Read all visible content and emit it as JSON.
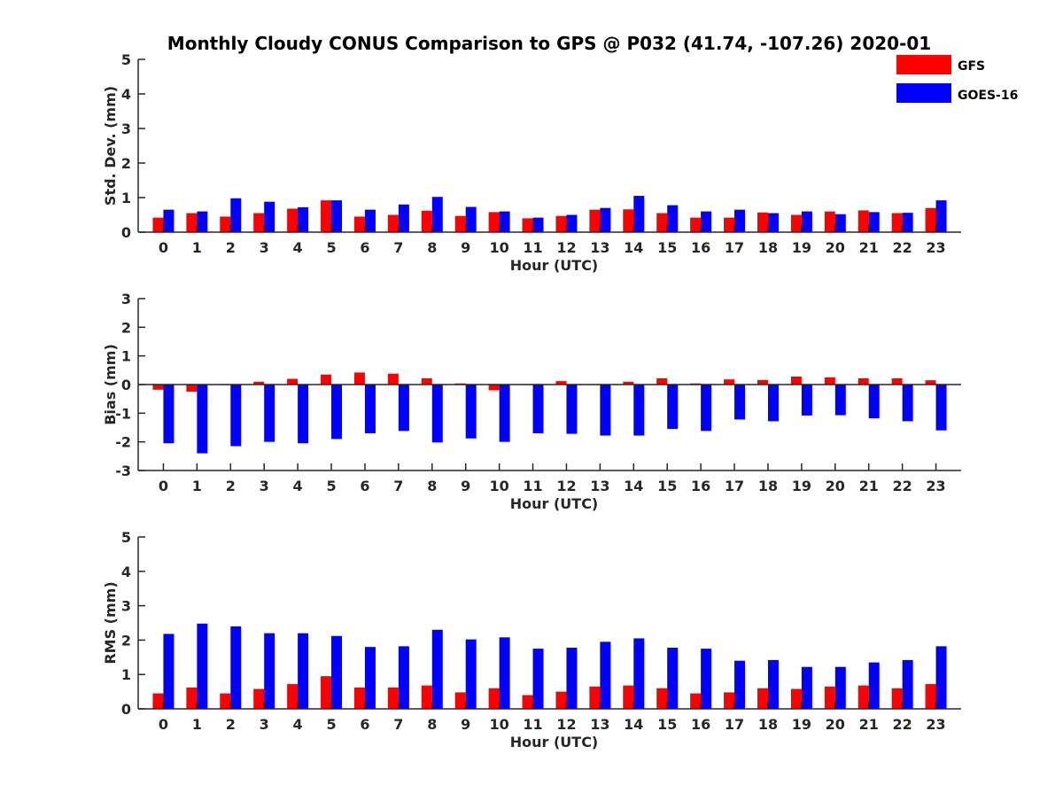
{
  "chart_data": {
    "type": "bar",
    "title": "Monthly Cloudy CONUS Comparison to GPS @ P032 (41.74, -107.26) 2020-01",
    "legend": {
      "placement": "top-right",
      "entries": [
        {
          "name": "GFS",
          "color": "#ff0000"
        },
        {
          "name": "GOES-16",
          "color": "#0000ff"
        }
      ]
    },
    "categories": [
      "0",
      "1",
      "2",
      "3",
      "4",
      "5",
      "6",
      "7",
      "8",
      "9",
      "10",
      "11",
      "12",
      "13",
      "14",
      "15",
      "16",
      "17",
      "18",
      "19",
      "20",
      "21",
      "22",
      "23"
    ],
    "panels": [
      {
        "id": "std",
        "xlabel": "Hour (UTC)",
        "ylabel": "Std. Dev. (mm)",
        "ylim": [
          0,
          5
        ],
        "yticks": [
          "0",
          "1",
          "2",
          "3",
          "4",
          "5"
        ],
        "series": [
          {
            "name": "GFS",
            "color": "#ff0000",
            "values": [
              0.42,
              0.55,
              0.45,
              0.55,
              0.68,
              0.92,
              0.45,
              0.5,
              0.62,
              0.47,
              0.58,
              0.4,
              0.47,
              0.65,
              0.66,
              0.55,
              0.42,
              0.42,
              0.57,
              0.5,
              0.6,
              0.63,
              0.55,
              0.7
            ]
          },
          {
            "name": "GOES-16",
            "color": "#0000ff",
            "values": [
              0.65,
              0.6,
              0.98,
              0.88,
              0.72,
              0.92,
              0.65,
              0.8,
              1.02,
              0.73,
              0.6,
              0.42,
              0.5,
              0.7,
              1.05,
              0.78,
              0.6,
              0.65,
              0.55,
              0.6,
              0.52,
              0.58,
              0.56,
              0.92
            ]
          }
        ]
      },
      {
        "id": "bias",
        "xlabel": "Hour (UTC)",
        "ylabel": "Bias (mm)",
        "ylim": [
          -3,
          3
        ],
        "yticks": [
          "-3",
          "-2",
          "-1",
          "0",
          "1",
          "2",
          "3"
        ],
        "series": [
          {
            "name": "GFS",
            "color": "#ff0000",
            "values": [
              -0.18,
              -0.25,
              -0.02,
              0.1,
              0.2,
              0.35,
              0.42,
              0.38,
              0.22,
              0.04,
              -0.2,
              -0.02,
              0.12,
              -0.02,
              0.1,
              0.22,
              0.04,
              0.18,
              0.16,
              0.28,
              0.25,
              0.22,
              0.22,
              0.15
            ]
          },
          {
            "name": "GOES-16",
            "color": "#0000ff",
            "values": [
              -2.05,
              -2.4,
              -2.15,
              -2.0,
              -2.05,
              -1.9,
              -1.7,
              -1.62,
              -2.02,
              -1.88,
              -2.0,
              -1.7,
              -1.72,
              -1.78,
              -1.78,
              -1.55,
              -1.62,
              -1.22,
              -1.28,
              -1.08,
              -1.07,
              -1.18,
              -1.28,
              -1.6
            ]
          }
        ]
      },
      {
        "id": "rms",
        "xlabel": "Hour (UTC)",
        "ylabel": "RMS (mm)",
        "ylim": [
          0,
          5
        ],
        "yticks": [
          "0",
          "1",
          "2",
          "3",
          "4",
          "5"
        ],
        "series": [
          {
            "name": "GFS",
            "color": "#ff0000",
            "values": [
              0.45,
              0.62,
              0.45,
              0.58,
              0.72,
              0.95,
              0.62,
              0.62,
              0.68,
              0.48,
              0.6,
              0.4,
              0.5,
              0.65,
              0.68,
              0.6,
              0.45,
              0.48,
              0.6,
              0.58,
              0.65,
              0.68,
              0.6,
              0.72
            ]
          },
          {
            "name": "GOES-16",
            "color": "#0000ff",
            "values": [
              2.18,
              2.48,
              2.4,
              2.2,
              2.2,
              2.12,
              1.8,
              1.82,
              2.3,
              2.02,
              2.08,
              1.75,
              1.78,
              1.95,
              2.05,
              1.78,
              1.75,
              1.4,
              1.42,
              1.22,
              1.22,
              1.35,
              1.42,
              1.82
            ]
          }
        ]
      }
    ]
  }
}
